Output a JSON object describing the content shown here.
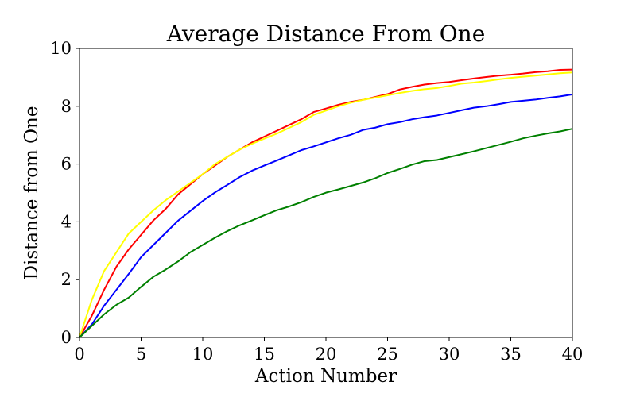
{
  "chart_data": {
    "type": "line",
    "title": "Average Distance From One",
    "xlabel": "Action Number",
    "ylabel": "Distance from One",
    "xlim": [
      0,
      40
    ],
    "ylim": [
      0,
      10
    ],
    "xticks": [
      "0",
      "5",
      "10",
      "15",
      "20",
      "25",
      "30",
      "35",
      "40"
    ],
    "yticks": [
      "0",
      "2",
      "4",
      "6",
      "8",
      "10"
    ],
    "grid": false,
    "x": [
      0,
      1,
      2,
      3,
      4,
      5,
      6,
      7,
      8,
      9,
      10,
      11,
      12,
      13,
      14,
      15,
      16,
      17,
      18,
      19,
      20,
      21,
      22,
      23,
      24,
      25,
      26,
      27,
      28,
      29,
      30,
      31,
      32,
      33,
      34,
      35,
      36,
      37,
      38,
      39,
      40
    ],
    "series": [
      {
        "color": "#ff0000",
        "values": [
          0,
          0.75,
          1.65,
          2.45,
          3.05,
          3.55,
          4.05,
          4.45,
          4.95,
          5.3,
          5.65,
          5.95,
          6.25,
          6.5,
          6.75,
          6.95,
          7.15,
          7.35,
          7.55,
          7.8,
          7.92,
          8.05,
          8.15,
          8.22,
          8.32,
          8.42,
          8.58,
          8.67,
          8.75,
          8.8,
          8.84,
          8.9,
          8.96,
          9.01,
          9.06,
          9.09,
          9.13,
          9.18,
          9.21,
          9.26,
          9.27
        ]
      },
      {
        "color": "#ffff00",
        "values": [
          0,
          1.3,
          2.3,
          2.95,
          3.6,
          4.0,
          4.4,
          4.75,
          5.05,
          5.35,
          5.65,
          6.0,
          6.25,
          6.5,
          6.7,
          6.88,
          7.05,
          7.25,
          7.45,
          7.7,
          7.85,
          8.0,
          8.12,
          8.22,
          8.3,
          8.38,
          8.46,
          8.53,
          8.59,
          8.63,
          8.7,
          8.78,
          8.82,
          8.87,
          8.93,
          8.98,
          9.02,
          9.06,
          9.1,
          9.14,
          9.17
        ]
      },
      {
        "color": "#0000ff",
        "values": [
          0,
          0.45,
          1.1,
          1.65,
          2.2,
          2.78,
          3.2,
          3.62,
          4.04,
          4.38,
          4.72,
          5.02,
          5.28,
          5.55,
          5.77,
          5.95,
          6.12,
          6.3,
          6.48,
          6.61,
          6.75,
          6.89,
          7.01,
          7.18,
          7.26,
          7.38,
          7.45,
          7.55,
          7.62,
          7.68,
          7.77,
          7.86,
          7.95,
          8.0,
          8.07,
          8.15,
          8.19,
          8.23,
          8.29,
          8.34,
          8.41
        ]
      },
      {
        "color": "#008000",
        "values": [
          0,
          0.4,
          0.8,
          1.13,
          1.38,
          1.75,
          2.1,
          2.35,
          2.63,
          2.95,
          3.2,
          3.45,
          3.68,
          3.88,
          4.05,
          4.23,
          4.4,
          4.53,
          4.68,
          4.86,
          5.01,
          5.12,
          5.24,
          5.36,
          5.51,
          5.69,
          5.83,
          5.98,
          6.1,
          6.14,
          6.24,
          6.34,
          6.44,
          6.55,
          6.66,
          6.77,
          6.89,
          6.98,
          7.06,
          7.13,
          7.22
        ]
      }
    ]
  }
}
